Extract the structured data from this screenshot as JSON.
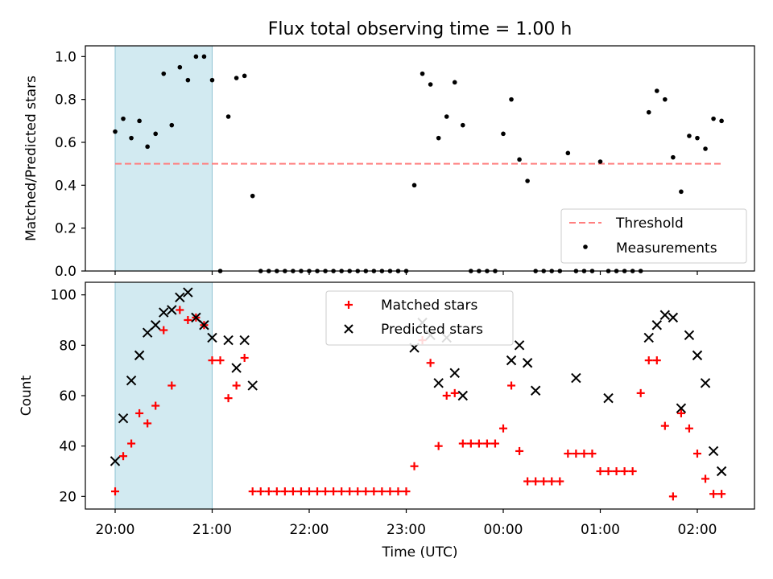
{
  "title": "Flux total observing time = 1.00 h",
  "colors": {
    "highlight": "#add8e6",
    "threshold": "#ff7f7f",
    "matched": "#ff0000",
    "predicted": "#000000",
    "measurement": "#000000"
  },
  "chart_data": [
    {
      "type": "scatter",
      "ylabel": "Matched/Predicted stars",
      "xlabel": "",
      "ylim": [
        0,
        1.05
      ],
      "yticks": [
        "0.0",
        "0.2",
        "0.4",
        "0.6",
        "0.8",
        "1.0"
      ],
      "legend_position": "lower right",
      "threshold": {
        "name": "Threshold",
        "value": 0.5,
        "x_start": "20:00",
        "x_end": "02:15"
      },
      "highlight_span": [
        "20:00",
        "21:00"
      ],
      "series": [
        {
          "name": "Measurements",
          "x": [
            "20:00",
            "20:05",
            "20:10",
            "20:15",
            "20:20",
            "20:25",
            "20:30",
            "20:35",
            "20:40",
            "20:45",
            "20:50",
            "20:55",
            "21:00",
            "21:05",
            "21:10",
            "21:15",
            "21:20",
            "21:25",
            "21:30",
            "21:35",
            "21:40",
            "21:45",
            "21:50",
            "21:55",
            "22:00",
            "22:05",
            "22:10",
            "22:15",
            "22:20",
            "22:25",
            "22:30",
            "22:35",
            "22:40",
            "22:45",
            "22:50",
            "22:55",
            "23:00",
            "23:05",
            "23:10",
            "23:15",
            "23:20",
            "23:25",
            "23:30",
            "23:35",
            "23:40",
            "23:45",
            "23:50",
            "23:55",
            "00:00",
            "00:05",
            "00:10",
            "00:15",
            "00:20",
            "00:25",
            "00:30",
            "00:35",
            "00:40",
            "00:45",
            "00:50",
            "00:55",
            "01:00",
            "01:05",
            "01:10",
            "01:15",
            "01:20",
            "01:25",
            "01:30",
            "01:35",
            "01:40",
            "01:45",
            "01:50",
            "01:55",
            "02:00",
            "02:05",
            "02:10",
            "02:15"
          ],
          "y": [
            0.65,
            0.71,
            0.62,
            0.7,
            0.58,
            0.64,
            0.92,
            0.68,
            0.95,
            0.89,
            1.0,
            1.0,
            0.89,
            0.0,
            0.72,
            0.9,
            0.91,
            0.35,
            0.0,
            0.0,
            0.0,
            0.0,
            0.0,
            0.0,
            0.0,
            0.0,
            0.0,
            0.0,
            0.0,
            0.0,
            0.0,
            0.0,
            0.0,
            0.0,
            0.0,
            0.0,
            0.0,
            0.4,
            0.92,
            0.87,
            0.62,
            0.72,
            0.88,
            0.68,
            0.0,
            0.0,
            0.0,
            0.0,
            0.64,
            0.8,
            0.52,
            0.42,
            0.0,
            0.0,
            0.0,
            0.0,
            0.55,
            0.0,
            0.0,
            0.0,
            0.51,
            0.0,
            0.0,
            0.0,
            0.0,
            0.0,
            0.74,
            0.84,
            0.8,
            0.53,
            0.37,
            0.63,
            0.62,
            0.57,
            0.71,
            0.7
          ]
        }
      ]
    },
    {
      "type": "scatter",
      "ylabel": "Count",
      "xlabel": "Time (UTC)",
      "ylim": [
        15,
        105
      ],
      "yticks": [
        "20",
        "40",
        "60",
        "80",
        "100"
      ],
      "xticks": [
        "20:00",
        "21:00",
        "22:00",
        "23:00",
        "00:00",
        "01:00",
        "02:00"
      ],
      "legend_position": "upper center",
      "highlight_span": [
        "20:00",
        "21:00"
      ],
      "series": [
        {
          "name": "Matched stars",
          "x": [
            "20:00",
            "20:05",
            "20:10",
            "20:15",
            "20:20",
            "20:25",
            "20:30",
            "20:35",
            "20:40",
            "20:45",
            "20:50",
            "20:55",
            "21:00",
            "21:05",
            "21:10",
            "21:15",
            "21:20",
            "21:25",
            "21:30",
            "21:35",
            "21:40",
            "21:45",
            "21:50",
            "21:55",
            "22:00",
            "22:05",
            "22:10",
            "22:15",
            "22:20",
            "22:25",
            "22:30",
            "22:35",
            "22:40",
            "22:45",
            "22:50",
            "22:55",
            "23:00",
            "23:05",
            "23:10",
            "23:15",
            "23:20",
            "23:25",
            "23:30",
            "23:35",
            "23:40",
            "23:45",
            "23:50",
            "23:55",
            "00:00",
            "00:05",
            "00:10",
            "00:15",
            "00:20",
            "00:25",
            "00:30",
            "00:35",
            "00:40",
            "00:45",
            "00:50",
            "00:55",
            "01:00",
            "01:05",
            "01:10",
            "01:15",
            "01:20",
            "01:25",
            "01:30",
            "01:35",
            "01:40",
            "01:45",
            "01:50",
            "01:55",
            "02:00",
            "02:05",
            "02:10",
            "02:15"
          ],
          "y": [
            22,
            36,
            41,
            53,
            49,
            56,
            86,
            64,
            94,
            90,
            91,
            88,
            74,
            74,
            59,
            64,
            75,
            22,
            22,
            22,
            22,
            22,
            22,
            22,
            22,
            22,
            22,
            22,
            22,
            22,
            22,
            22,
            22,
            22,
            22,
            22,
            22,
            32,
            82,
            73,
            40,
            60,
            61,
            41,
            41,
            41,
            41,
            41,
            47,
            64,
            38,
            26,
            26,
            26,
            26,
            26,
            37,
            37,
            37,
            37,
            30,
            30,
            30,
            30,
            30,
            61,
            74,
            74,
            48,
            20,
            53,
            47,
            37,
            27,
            21,
            21
          ]
        },
        {
          "name": "Predicted stars",
          "x": [
            "20:00",
            "20:05",
            "20:10",
            "20:15",
            "20:20",
            "20:25",
            "20:30",
            "20:35",
            "20:40",
            "20:45",
            "20:50",
            "20:55",
            "21:00",
            "21:10",
            "21:15",
            "21:20",
            "21:25",
            "23:05",
            "23:10",
            "23:15",
            "23:20",
            "23:25",
            "23:30",
            "23:35",
            "00:05",
            "00:10",
            "00:15",
            "00:20",
            "00:45",
            "01:05",
            "01:30",
            "01:35",
            "01:40",
            "01:45",
            "01:50",
            "01:55",
            "02:00",
            "02:05",
            "02:10",
            "02:15"
          ],
          "y": [
            34,
            51,
            66,
            76,
            85,
            88,
            93,
            94,
            99,
            101,
            91,
            88,
            83,
            82,
            71,
            82,
            64,
            79,
            89,
            84,
            65,
            83,
            69,
            60,
            74,
            80,
            73,
            62,
            67,
            59,
            83,
            88,
            92,
            91,
            55,
            84,
            76,
            65,
            38,
            30
          ]
        }
      ]
    }
  ]
}
